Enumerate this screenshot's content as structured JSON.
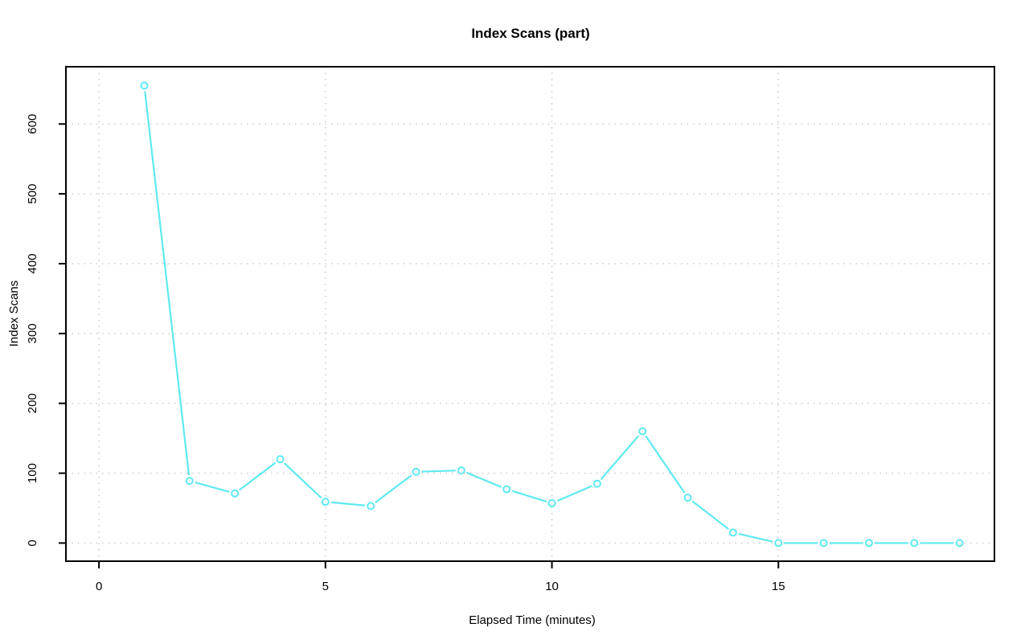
{
  "page": {
    "background": "#ffffff"
  },
  "chart_data": {
    "type": "line",
    "title": "Index Scans (part)",
    "xlabel": "Elapsed Time (minutes)",
    "ylabel": "Index Scans",
    "x": [
      1,
      2,
      3,
      4,
      5,
      6,
      7,
      8,
      9,
      10,
      11,
      12,
      13,
      14,
      15,
      16,
      17,
      18,
      19
    ],
    "values": [
      655,
      89,
      71,
      120,
      59,
      53,
      102,
      104,
      77,
      57,
      85,
      160,
      65,
      15,
      0,
      0,
      0,
      0,
      0
    ],
    "xticks": [
      0,
      5,
      10,
      15
    ],
    "yticks": [
      0,
      100,
      200,
      300,
      400,
      500,
      600
    ],
    "xlim": [
      -0.73,
      19.77
    ],
    "ylim": [
      -26,
      682
    ],
    "grid": "dotted",
    "legend_position": "none",
    "marker": "open-circle",
    "line_color": "#5fe9f0",
    "marker_fill": "#ffffff",
    "grid_color": "#c6c6c6",
    "axis_color": "#000000",
    "text_color": "#000000"
  }
}
